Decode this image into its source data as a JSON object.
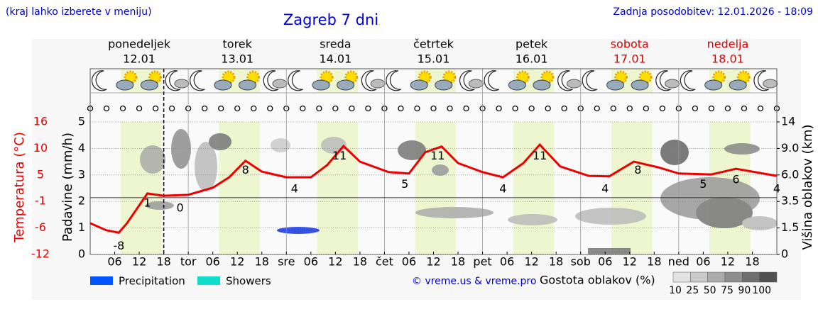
{
  "chart_data": {
    "type": "meteogram",
    "note": "(kraj lahko izberete v meniju)",
    "title": "Zagreb 7 dni",
    "updated": "Zadnja posodobitev: 12.01.2026 - 18:09",
    "days": [
      {
        "name": "ponedeljek",
        "date": "12.01",
        "color": "#000000"
      },
      {
        "name": "torek",
        "date": "13.01",
        "color": "#000000"
      },
      {
        "name": "sreda",
        "date": "14.01",
        "color": "#000000"
      },
      {
        "name": "četrtek",
        "date": "15.01",
        "color": "#000000"
      },
      {
        "name": "petek",
        "date": "16.01",
        "color": "#000000"
      },
      {
        "name": "sobota",
        "date": "17.01",
        "color": "#dd0000"
      },
      {
        "name": "nedelja",
        "date": "18.01",
        "color": "#dd0000"
      }
    ],
    "xlim": [
      0,
      168
    ],
    "xticks": [
      {
        "value": 6,
        "label": "06"
      },
      {
        "value": 12,
        "label": "12"
      },
      18,
      {
        "value": 24,
        "label": "tor"
      },
      {
        "value": 30,
        "label": "06"
      },
      {
        "value": 36,
        "label": "12"
      },
      {
        "value": 42,
        "label": "18"
      },
      {
        "value": 48,
        "label": "sre"
      },
      {
        "value": 54,
        "label": "06"
      },
      {
        "value": 60,
        "label": "12"
      },
      {
        "value": 66,
        "label": "18"
      },
      {
        "value": 72,
        "label": "čet"
      },
      {
        "value": 78,
        "label": "06"
      },
      {
        "value": 84,
        "label": "12"
      },
      {
        "value": 90,
        "label": "18"
      },
      {
        "value": 96,
        "label": "pet"
      },
      {
        "value": 102,
        "label": "06"
      },
      {
        "value": 108,
        "label": "12"
      },
      {
        "value": 114,
        "label": "18"
      },
      {
        "value": 120,
        "label": "sob"
      },
      {
        "value": 126,
        "label": "06"
      },
      {
        "value": 132,
        "label": "12"
      },
      {
        "value": 138,
        "label": "18"
      },
      {
        "value": 144,
        "label": "ned"
      },
      {
        "value": 150,
        "label": "06"
      },
      {
        "value": 156,
        "label": "12"
      },
      {
        "value": 162,
        "label": "18"
      }
    ],
    "ylabel": "Padavine (mm/h)",
    "ylim": [
      0,
      5
    ],
    "yticks": [
      0,
      1,
      2,
      3,
      4,
      5
    ],
    "temp_label": "Temperatura (°C)",
    "temp_lim": [
      -12,
      16
    ],
    "temp_ticks": [
      {
        "value": -12,
        "label": "-12"
      },
      {
        "value": -6.4,
        "label": "-6"
      },
      {
        "value": -0.8,
        "label": "-1"
      },
      {
        "value": 4.8,
        "label": "5"
      },
      {
        "value": 10.4,
        "label": "10"
      },
      16
    ],
    "y2label": "Višina oblakov (km)",
    "y2ticks": [
      0,
      1.5,
      3.5,
      {
        "value": 6,
        "label": "6.0"
      },
      {
        "value": 9,
        "label": "9.0"
      },
      14
    ],
    "temperature": {
      "color": "#ee0000",
      "x": [
        0,
        4,
        7,
        9,
        14,
        18,
        24,
        30,
        34,
        38,
        42,
        48,
        54,
        58,
        62,
        66,
        73,
        78,
        82,
        86,
        90,
        96,
        101,
        106,
        110,
        115,
        122,
        127,
        133,
        139,
        144,
        152,
        158,
        168
      ],
      "values": [
        -5.4,
        -6.9,
        -7.4,
        -5.4,
        0.9,
        0.4,
        0.6,
        2.1,
        4.3,
        7.8,
        5.5,
        4.3,
        4.3,
        6.9,
        10.9,
        7.6,
        5.4,
        5.1,
        9.6,
        10.8,
        7.3,
        5.4,
        4.3,
        7.3,
        11.2,
        6.6,
        4.6,
        4.5,
        7.6,
        6.4,
        5.1,
        4.9,
        6.1,
        4.6
      ],
      "labels_x": [
        7,
        14,
        22,
        38,
        50,
        61,
        77,
        85,
        101,
        110,
        126,
        134,
        150,
        158,
        168
      ],
      "labels": [
        -8,
        1,
        0,
        8,
        4,
        11,
        5,
        11,
        4,
        11,
        4,
        8,
        5,
        6,
        4
      ]
    },
    "legend": [
      {
        "name": "Precipitation",
        "color": "#0055ff"
      },
      {
        "name": "Showers",
        "color": "#11ddcc"
      }
    ],
    "credit": "© vreme.us & vreme.pro",
    "cloud_density": {
      "title": "Gostota oblakov (%)",
      "levels": [
        10,
        25,
        50,
        75,
        90,
        100
      ],
      "colors": [
        "#e2e2e2",
        "#cacaca",
        "#acacac",
        "#8e8e8e",
        "#6e6e6e",
        "#505050"
      ]
    }
  }
}
